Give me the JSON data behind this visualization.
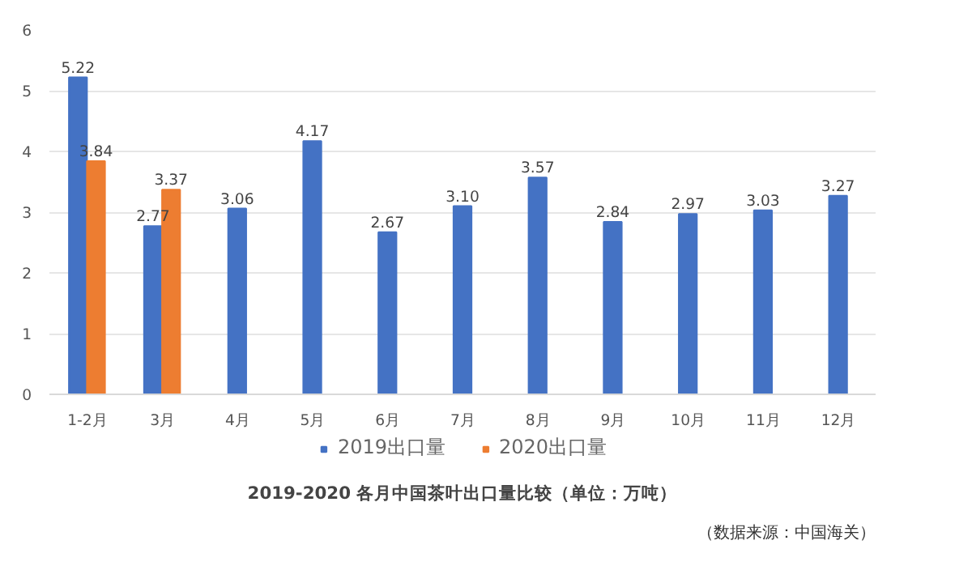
{
  "chart_data": {
    "type": "bar",
    "title": "2019-2020 各月中国茶叶出口量比较（单位：万吨）",
    "categories": [
      "1-2月",
      "3月",
      "4月",
      "5月",
      "6月",
      "7月",
      "8月",
      "9月",
      "10月",
      "11月",
      "12月"
    ],
    "series": [
      {
        "name": "2019出口量",
        "color": "#4472c4",
        "values": [
          5.22,
          2.77,
          3.06,
          4.17,
          2.67,
          3.1,
          3.57,
          2.84,
          2.97,
          3.03,
          3.27
        ],
        "value_labels": [
          "5.22",
          "2.77",
          "3.06",
          "4.17",
          "2.67",
          "3.10",
          "3.57",
          "2.84",
          "2.97",
          "3.03",
          "3.27"
        ]
      },
      {
        "name": "2020出口量",
        "color": "#ed7d31",
        "values": [
          3.84,
          3.37,
          null,
          null,
          null,
          null,
          null,
          null,
          null,
          null,
          null
        ],
        "value_labels": [
          "3.84",
          "3.37",
          null,
          null,
          null,
          null,
          null,
          null,
          null,
          null,
          null
        ]
      }
    ],
    "ylim": [
      0,
      6
    ],
    "yticks": [
      0,
      1,
      2,
      3,
      4,
      5,
      6
    ],
    "grid": "y",
    "legend": "bottom",
    "annotations": [
      "（数据来源：中国海关）"
    ]
  }
}
